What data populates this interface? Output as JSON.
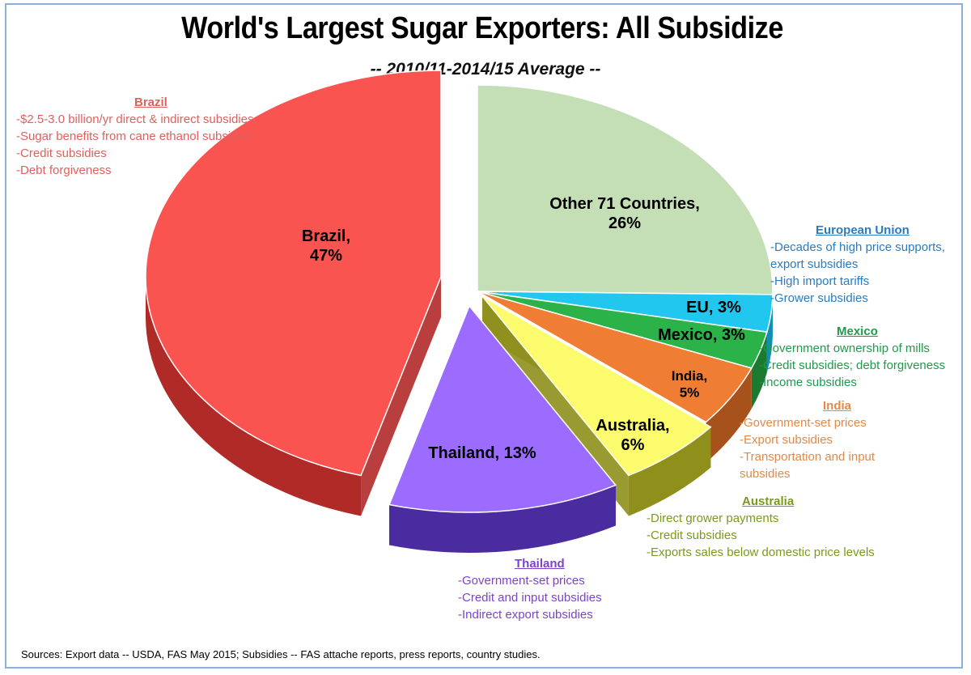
{
  "chart_data": {
    "type": "pie",
    "title": "World's Largest Sugar Exporters: All Subsidize",
    "subtitle": "-- 2010/11-2014/15 Average --",
    "slices": [
      {
        "name": "Other 71 Countries",
        "value": 26,
        "label_line1": "Other 71 Countries,",
        "label_line2": "26%",
        "color": "#c4dfb6",
        "dark": "#8ea878"
      },
      {
        "name": "EU",
        "value": 3,
        "label_line1": "EU, 3%",
        "label_line2": "",
        "color": "#21c7ef",
        "dark": "#1090b0"
      },
      {
        "name": "Mexico",
        "value": 3,
        "label_line1": "Mexico, 3%",
        "label_line2": "",
        "color": "#2bb34a",
        "dark": "#1a7a30"
      },
      {
        "name": "India",
        "value": 5,
        "label_line1": "India,",
        "label_line2": "5%",
        "color": "#ef7d34",
        "dark": "#a6521a"
      },
      {
        "name": "Australia",
        "value": 6,
        "label_line1": "Australia,",
        "label_line2": "6%",
        "color": "#fbfb6d",
        "dark": "#8f8f1c"
      },
      {
        "name": "Thailand",
        "value": 13,
        "label_line1": "Thailand, 13%",
        "label_line2": "",
        "color": "#9b6cff",
        "dark": "#4a2ca0"
      },
      {
        "name": "Brazil",
        "value": 47,
        "label_line1": "Brazil,",
        "label_line2": "47%",
        "color": "#fa5451",
        "dark": "#b02a28"
      }
    ]
  },
  "notes": {
    "brazil": {
      "head": "Brazil",
      "color": "#e0605d",
      "items": [
        "-$2.5-3.0 billion/yr direct & indirect subsidies",
        "-Sugar benefits from cane ethanol subsidies",
        "-Credit subsidies",
        "-Debt forgiveness"
      ]
    },
    "eu": {
      "head": "European Union",
      "color": "#2a7bbf",
      "items": [
        "-Decades of high price supports,",
        " export subsidies",
        "-High import tariffs",
        "-Grower subsidies"
      ]
    },
    "mexico": {
      "head": "Mexico",
      "color": "#1f9a4c",
      "items": [
        "-Government ownership of mills",
        "-Credit subsidies; debt forgiveness",
        "-Income subsidies"
      ]
    },
    "india": {
      "head": "India",
      "color": "#e08a4a",
      "items": [
        "-Government-set prices",
        "-Export subsidies",
        "-Transportation and input",
        " subsidies"
      ]
    },
    "australia": {
      "head": "Australia",
      "color": "#7a9a1c",
      "items": [
        "-Direct grower payments",
        "-Credit subsidies",
        "-Exports sales below domestic price levels"
      ]
    },
    "thailand": {
      "head": "Thailand",
      "color": "#7b44c8",
      "items": [
        "-Government-set prices",
        "-Credit and input subsidies",
        "-Indirect export subsidies"
      ]
    }
  },
  "sources": "Sources: Export data -- USDA, FAS May 2015; Subsidies -- FAS attache reports, press reports, country studies."
}
